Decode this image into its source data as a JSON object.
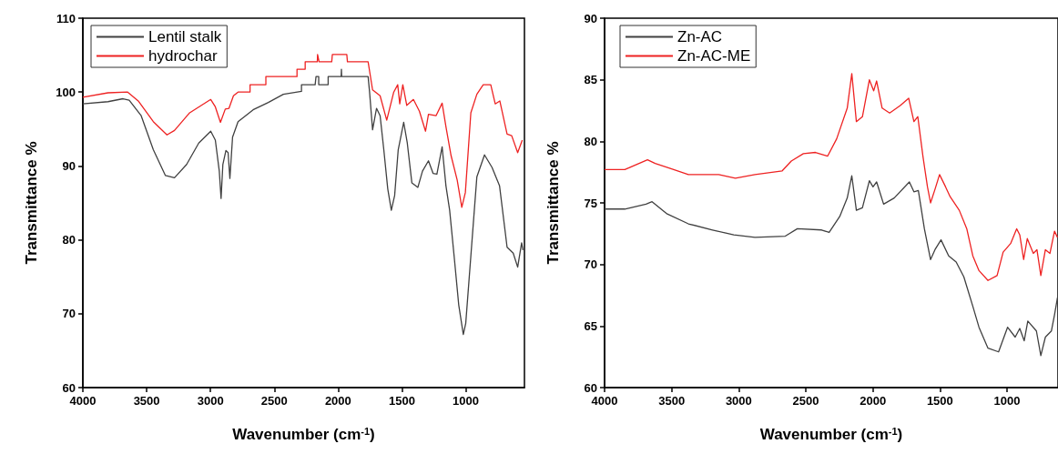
{
  "chart_data": [
    {
      "type": "line",
      "xlabel": "Wavenumber (cm$^{-1}$)",
      "ylabel": "Transmittance %",
      "xlim": [
        4000,
        540
      ],
      "ylim": [
        60,
        110
      ],
      "xticks": [
        4000,
        3500,
        3000,
        2500,
        2000,
        1500,
        1000
      ],
      "yticks": [
        60,
        70,
        80,
        90,
        100,
        110
      ],
      "grid": false,
      "legend": "top left",
      "series": [
        {
          "name": "Lentil stalk",
          "color": "#404040",
          "x": [
            4000,
            3803,
            3685,
            3637,
            3543,
            3448,
            3353,
            3282,
            3187,
            3092,
            2998,
            2962,
            2931,
            2917,
            2903,
            2879,
            2862,
            2848,
            2827,
            2784,
            2666,
            2547,
            2429,
            2287,
            2287,
            2180,
            2173,
            2152,
            2152,
            2078,
            2078,
            1976,
            1974,
            1972,
            1813,
            1765,
            1754,
            1730,
            1699,
            1671,
            1642,
            1611,
            1583,
            1557,
            1529,
            1486,
            1458,
            1422,
            1375,
            1339,
            1292,
            1256,
            1226,
            1185,
            1155,
            1126,
            1091,
            1055,
            1019,
            1000,
            960,
            913,
            853,
            794,
            735,
            676,
            628,
            593,
            562,
            552
          ],
          "values": [
            98.4,
            98.7,
            99.1,
            98.9,
            96.8,
            92.2,
            88.7,
            88.4,
            90.2,
            93.1,
            94.7,
            93.5,
            89.3,
            85.6,
            90.2,
            92.1,
            91.8,
            88.3,
            93.9,
            96.0,
            97.6,
            98.6,
            99.7,
            100.1,
            101.0,
            101.0,
            102.1,
            102.1,
            101.0,
            101.0,
            102.1,
            102.1,
            103.1,
            102.1,
            102.1,
            102.1,
            100.1,
            94.9,
            97.8,
            96.8,
            92.2,
            86.9,
            84.0,
            86.0,
            92.2,
            95.9,
            93.1,
            87.7,
            87.1,
            89.3,
            90.7,
            89.0,
            88.9,
            92.6,
            87.3,
            84.0,
            77.8,
            71.2,
            67.2,
            68.7,
            77.8,
            88.5,
            91.5,
            89.8,
            87.3,
            79.0,
            78.2,
            76.3,
            79.6,
            78.6
          ]
        },
        {
          "name": "hydrochar",
          "color": "#ee2222",
          "x": [
            4000,
            3803,
            3649,
            3566,
            3448,
            3341,
            3282,
            3163,
            2998,
            2962,
            2922,
            2884,
            2855,
            2820,
            2784,
            2690,
            2690,
            2566,
            2566,
            2322,
            2322,
            2258,
            2258,
            2163,
            2161,
            2149,
            2050,
            2045,
            1932,
            1927,
            1765,
            1730,
            1671,
            1619,
            1564,
            1533,
            1517,
            1493,
            1462,
            1410,
            1363,
            1315,
            1292,
            1233,
            1185,
            1155,
            1115,
            1067,
            1031,
            1003,
            960,
            913,
            863,
            804,
            769,
            733,
            676,
            640,
            593,
            557
          ],
          "values": [
            99.3,
            99.9,
            100.0,
            98.8,
            96.0,
            94.2,
            94.8,
            97.2,
            99.0,
            98.0,
            95.9,
            97.7,
            97.8,
            99.5,
            100.0,
            100.0,
            101.0,
            101.0,
            102.1,
            102.1,
            103.1,
            103.1,
            104.1,
            104.1,
            105.1,
            104.1,
            104.1,
            105.1,
            105.1,
            104.1,
            104.1,
            100.3,
            99.5,
            96.2,
            100.0,
            101.0,
            98.4,
            101.0,
            98.2,
            99.0,
            97.4,
            94.7,
            97.0,
            96.8,
            98.5,
            95.3,
            91.4,
            88.1,
            84.4,
            86.4,
            97.2,
            99.7,
            101.0,
            101.0,
            98.4,
            98.8,
            94.3,
            94.1,
            91.8,
            93.5
          ]
        }
      ]
    },
    {
      "type": "line",
      "xlabel": "Wavenumber (cm$^{-1}$)",
      "ylabel": "Transmittance %",
      "xlim": [
        4000,
        620
      ],
      "ylim": [
        60,
        90
      ],
      "xticks": [
        4000,
        3500,
        3000,
        2500,
        2000,
        1500,
        1000
      ],
      "yticks": [
        60,
        65,
        70,
        75,
        80,
        85,
        90
      ],
      "grid": false,
      "legend": "top left",
      "series": [
        {
          "name": "Zn-AC",
          "color": "#404040",
          "x": [
            4000,
            3849,
            3691,
            3646,
            3533,
            3375,
            3195,
            3037,
            2879,
            2653,
            2563,
            2382,
            2326,
            2247,
            2191,
            2157,
            2123,
            2078,
            2026,
            1999,
            1972,
            1920,
            1841,
            1728,
            1694,
            1661,
            1616,
            1570,
            1537,
            1492,
            1435,
            1379,
            1322,
            1255,
            1209,
            1142,
            1063,
            996,
            939,
            905,
            872,
            845,
            781,
            748,
            714,
            669,
            646,
            624
          ],
          "values": [
            74.5,
            74.5,
            74.9,
            75.1,
            74.1,
            73.3,
            72.8,
            72.4,
            72.2,
            72.3,
            72.9,
            72.8,
            72.6,
            73.9,
            75.4,
            77.2,
            74.4,
            74.6,
            76.8,
            76.3,
            76.7,
            74.9,
            75.4,
            76.7,
            75.9,
            76.0,
            72.9,
            70.4,
            71.2,
            72.0,
            70.7,
            70.2,
            69.0,
            66.6,
            64.9,
            63.2,
            62.9,
            64.9,
            64.1,
            64.8,
            63.8,
            65.4,
            64.6,
            62.6,
            64.1,
            64.6,
            65.9,
            67.3
          ]
        },
        {
          "name": "Zn-AC-ME",
          "color": "#ee2222",
          "x": [
            4000,
            3849,
            3680,
            3623,
            3510,
            3375,
            3149,
            3025,
            2879,
            2676,
            2608,
            2518,
            2428,
            2337,
            2270,
            2191,
            2157,
            2123,
            2078,
            2026,
            1994,
            1972,
            1931,
            1875,
            1796,
            1733,
            1694,
            1665,
            1627,
            1593,
            1570,
            1537,
            1503,
            1458,
            1424,
            1356,
            1300,
            1255,
            1209,
            1142,
            1074,
            1029,
            973,
            928,
            905,
            876,
            849,
            804,
            777,
            748,
            714,
            680,
            646,
            624
          ],
          "values": [
            77.7,
            77.7,
            78.5,
            78.2,
            77.8,
            77.3,
            77.3,
            77.0,
            77.3,
            77.6,
            78.4,
            79.0,
            79.1,
            78.8,
            80.2,
            82.7,
            85.5,
            81.6,
            82.0,
            85.0,
            84.1,
            84.9,
            82.7,
            82.3,
            82.9,
            83.5,
            81.6,
            82.0,
            78.8,
            76.3,
            75.0,
            76.1,
            77.3,
            76.3,
            75.5,
            74.4,
            72.9,
            70.7,
            69.5,
            68.7,
            69.1,
            71.0,
            71.7,
            72.9,
            72.4,
            70.4,
            72.1,
            70.9,
            71.2,
            69.1,
            71.2,
            70.9,
            72.7,
            72.2
          ]
        }
      ]
    }
  ]
}
